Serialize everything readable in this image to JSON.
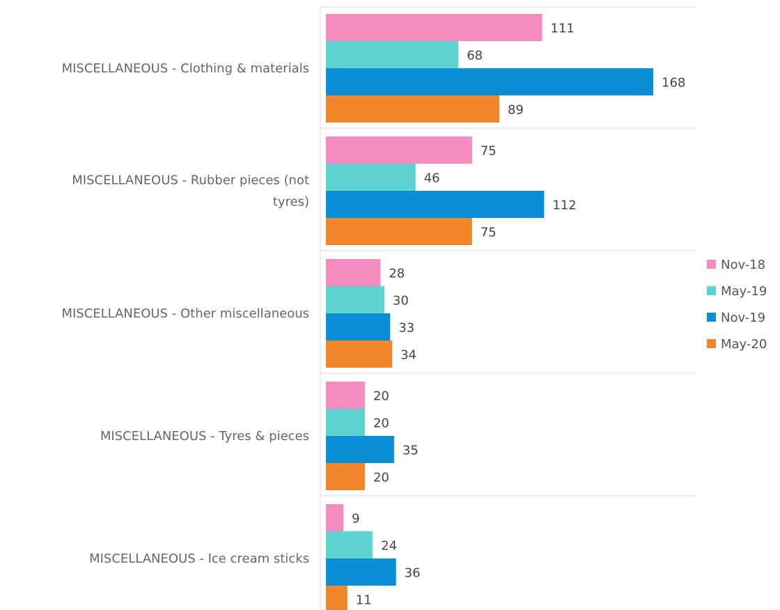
{
  "chart_data": {
    "type": "bar",
    "orientation": "horizontal",
    "categories": [
      "MISCELLANEOUS - Clothing & materials",
      "MISCELLANEOUS - Rubber pieces (not tyres)",
      "MISCELLANEOUS - Other miscellaneous",
      "MISCELLANEOUS - Tyres & pieces",
      "MISCELLANEOUS - Ice cream sticks"
    ],
    "category_lines": [
      [
        "MISCELLANEOUS - Clothing & materials"
      ],
      [
        "MISCELLANEOUS - Rubber pieces (not",
        "tyres)"
      ],
      [
        "MISCELLANEOUS - Other miscellaneous"
      ],
      [
        "MISCELLANEOUS - Tyres & pieces"
      ],
      [
        "MISCELLANEOUS - Ice cream sticks"
      ]
    ],
    "series": [
      {
        "name": "Nov-18",
        "color": "#f48cbf",
        "values": [
          111,
          75,
          28,
          20,
          9
        ]
      },
      {
        "name": "May-19",
        "color": "#5ed3cf",
        "values": [
          68,
          46,
          30,
          20,
          24
        ]
      },
      {
        "name": "Nov-19",
        "color": "#0a8fd6",
        "values": [
          168,
          112,
          33,
          35,
          36
        ]
      },
      {
        "name": "May-20",
        "color": "#f0852a",
        "values": [
          89,
          75,
          34,
          20,
          11
        ]
      }
    ],
    "xlim": [
      0,
      168
    ],
    "data_labels": true,
    "gridlines": "category-separators",
    "legend_position": "right",
    "title": "",
    "xlabel": "",
    "ylabel": ""
  }
}
